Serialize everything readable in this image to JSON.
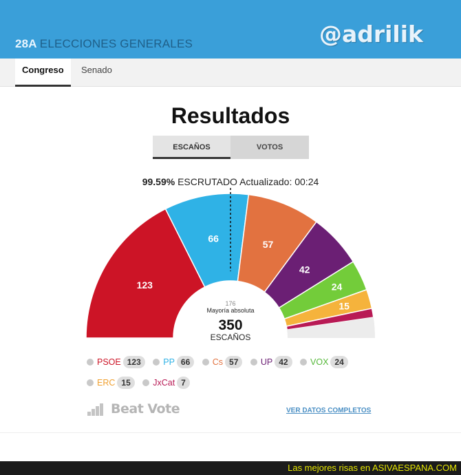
{
  "header": {
    "prefix": "28A",
    "title": "ELECCIONES GENERALES",
    "watermark": "@adrilik"
  },
  "tabs": [
    {
      "label": "Congreso",
      "active": true
    },
    {
      "label": "Senado",
      "active": false
    }
  ],
  "main": {
    "heading": "Resultados",
    "toggle": [
      {
        "label": "ESCAÑOS",
        "selected": true
      },
      {
        "label": "VOTOS",
        "selected": false
      }
    ],
    "scrutiny": {
      "percent": "99.59%",
      "text": "ESCRUTADO Actualizado: 00:24"
    }
  },
  "chart_data": {
    "type": "pie",
    "variant": "half-donut (parliament)",
    "total": 350,
    "total_label": "ESCAÑOS",
    "majority": 176,
    "majority_label": "Mayoría absoluta",
    "slices": [
      {
        "name": "PSOE",
        "value": 123,
        "color": "#cc1426"
      },
      {
        "name": "PP",
        "value": 66,
        "color": "#2fb2e6"
      },
      {
        "name": "Cs",
        "value": 57,
        "color": "#e27240"
      },
      {
        "name": "UP",
        "value": 42,
        "color": "#6b1f74"
      },
      {
        "name": "VOX",
        "value": 24,
        "color": "#73cc3a"
      },
      {
        "name": "ERC",
        "value": 15,
        "color": "#f5b33c"
      },
      {
        "name": "JxCat",
        "value": 7,
        "color": "#b81a55"
      }
    ],
    "remaining_seats": 16,
    "legend_colors": {
      "PSOE": "#cc1426",
      "PP": "#2fb2e6",
      "Cs": "#e27240",
      "UP": "#6b1f74",
      "VOX": "#55b83a",
      "ERC": "#f0a030",
      "JxCat": "#b81a55"
    }
  },
  "footer": {
    "brand": "Beat Vote",
    "link": "VER DATOS COMPLETOS",
    "site": "Las mejores risas en ASIVAESPANA.COM"
  }
}
